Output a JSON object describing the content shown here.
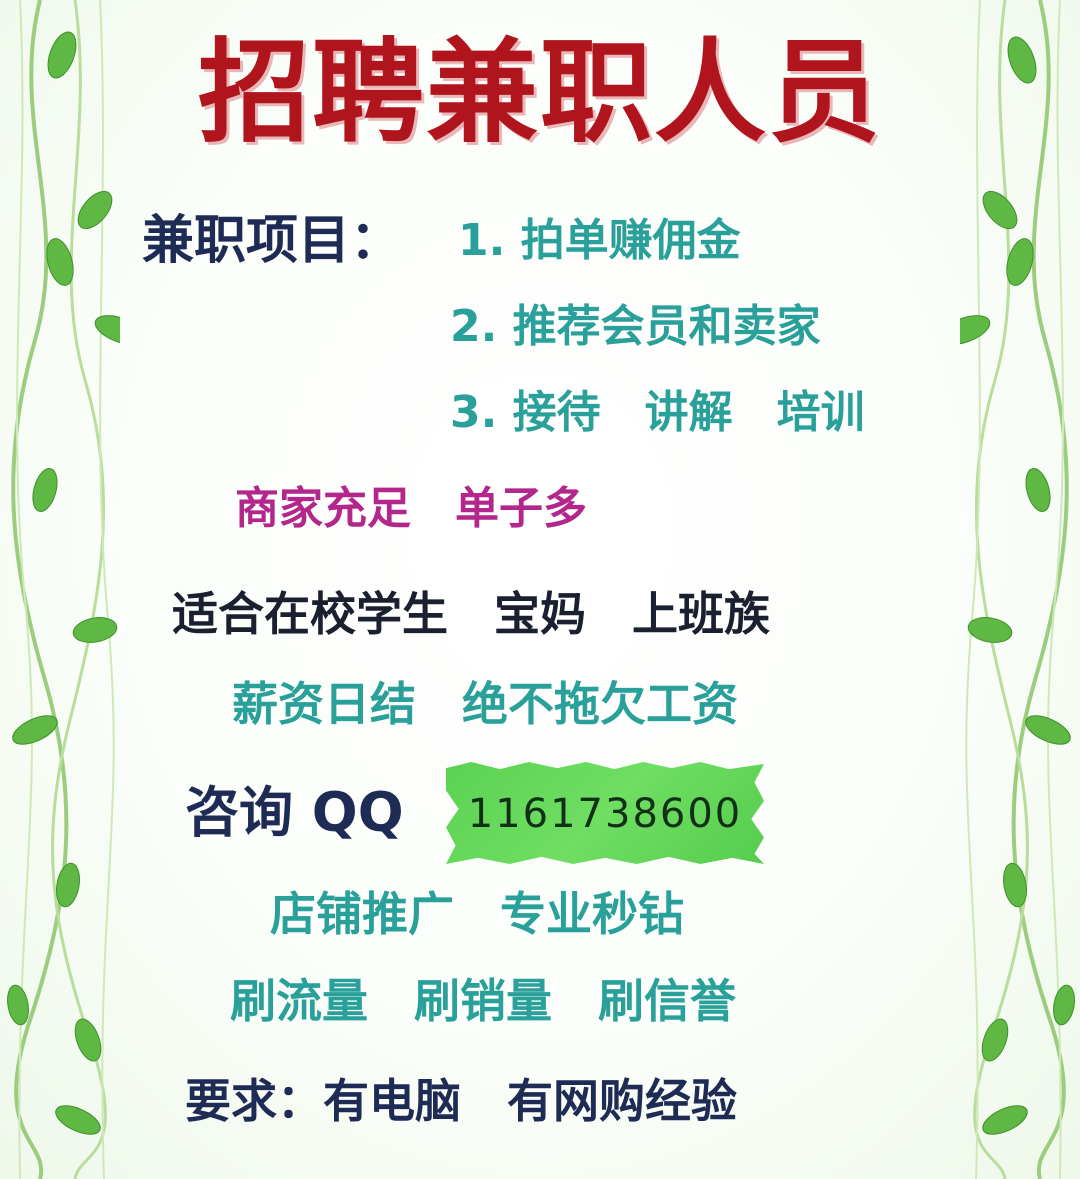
{
  "title": "招聘兼职人员",
  "projects": {
    "label": "兼职项目：",
    "items": [
      "1. 拍单赚佣金",
      "2. 推荐会员和卖家",
      "3. 接待　讲解　培训"
    ]
  },
  "merchants": "商家充足　单子多",
  "suitable": "适合在校学生　宝妈　上班族",
  "salary": "薪资日结　绝不拖欠工资",
  "contact": {
    "label": "咨询 QQ",
    "number": "1161738600"
  },
  "services": [
    "店铺推广　专业秒钻",
    "刷流量　刷销量　刷信誉"
  ],
  "requirements": "要求：有电脑　有网购经验",
  "colors": {
    "title": "#b0141c",
    "navy": "#1e2b55",
    "teal": "#2aa09a",
    "magenta": "#b3268c",
    "vine_leaf": "#5fb844",
    "tag_green": "#5cd252"
  },
  "icons": [
    "vine-border-left",
    "vine-border-right",
    "leaf-icon"
  ]
}
